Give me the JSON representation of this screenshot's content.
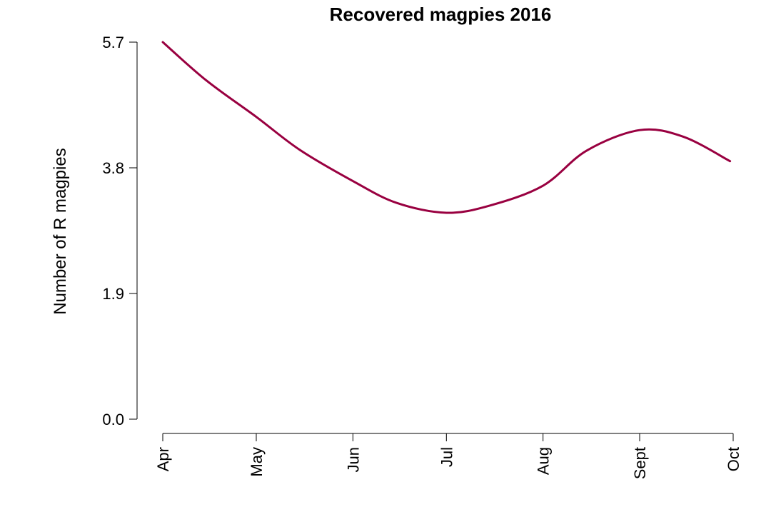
{
  "chart_data": {
    "type": "line",
    "title": "Recovered magpies 2016",
    "xlabel": "",
    "ylabel": "Number of R magpies",
    "x_ticks": [
      "Apr",
      "May",
      "Jun",
      "Jul",
      "Aug",
      "Sept",
      "Oct"
    ],
    "y_ticks": [
      "0.0",
      "1.9",
      "3.8",
      "5.7"
    ],
    "ylim": [
      0,
      5.7
    ],
    "xlim": [
      "2016-04-01",
      "2016-10-01"
    ],
    "grid": false,
    "line_color": "#990040",
    "series": [
      {
        "x": [
          "2016-04-01",
          "2016-04-15",
          "2016-05-01",
          "2016-05-15",
          "2016-06-01",
          "2016-06-15",
          "2016-07-01",
          "2016-07-15",
          "2016-08-01",
          "2016-08-15",
          "2016-09-01",
          "2016-09-15",
          "2016-09-30"
        ],
        "values": [
          5.7,
          5.12,
          4.57,
          4.07,
          3.6,
          3.27,
          3.12,
          3.23,
          3.53,
          4.06,
          4.37,
          4.27,
          3.9
        ]
      }
    ]
  }
}
